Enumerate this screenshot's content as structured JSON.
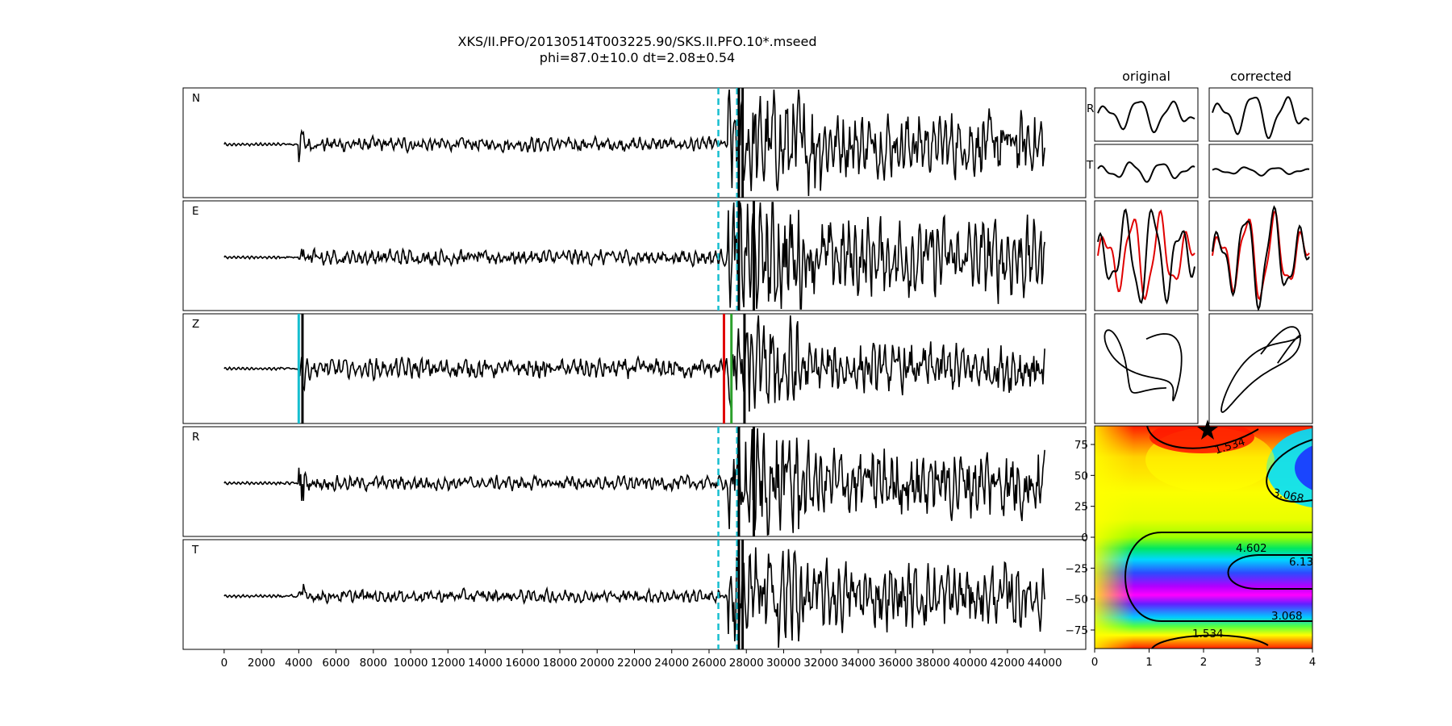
{
  "title": {
    "line1": "XKS/II.PFO/20130514T003225.90/SKS.II.PFO.10*.mseed",
    "line2": "phi=87.0±10.0 dt=2.08±0.54"
  },
  "chart_data": [
    {
      "type": "line",
      "description_of_axes": "shared x axis for trace panels",
      "x_ticks": [
        "0",
        "2000",
        "4000",
        "6000",
        "8000",
        "10000",
        "12000",
        "14000",
        "16000",
        "18000",
        "20000",
        "22000",
        "24000",
        "26000",
        "28000",
        "30000",
        "32000",
        "34000",
        "36000",
        "38000",
        "40000",
        "42000",
        "44000"
      ],
      "x_tick_values": [
        0,
        2000,
        4000,
        6000,
        8000,
        10000,
        12000,
        14000,
        16000,
        18000,
        20000,
        22000,
        24000,
        26000,
        28000,
        30000,
        32000,
        34000,
        36000,
        38000,
        40000,
        42000,
        44000
      ],
      "xlim": [
        -2200,
        46200
      ],
      "panels": [
        {
          "label": "N",
          "markers": [
            {
              "x": 26500,
              "color": "#17becf",
              "style": "dashed"
            },
            {
              "x": 27500,
              "color": "#17becf",
              "style": "dashed"
            },
            {
              "x": 27600,
              "color": "#000000",
              "style": "solid"
            },
            {
              "x": 27800,
              "color": "#000000",
              "style": "solid"
            }
          ]
        },
        {
          "label": "E",
          "markers": [
            {
              "x": 26500,
              "color": "#17becf",
              "style": "dashed"
            },
            {
              "x": 27500,
              "color": "#17becf",
              "style": "dashed"
            },
            {
              "x": 27600,
              "color": "#000000",
              "style": "solid"
            },
            {
              "x": 28400,
              "color": "#000000",
              "style": "solid"
            }
          ]
        },
        {
          "label": "Z",
          "markers": [
            {
              "x": 4000,
              "color": "#17becf",
              "style": "solid"
            },
            {
              "x": 4200,
              "color": "#000000",
              "style": "solid"
            },
            {
              "x": 26800,
              "color": "#e00000",
              "style": "solid"
            },
            {
              "x": 27200,
              "color": "#2ca02c",
              "style": "solid"
            },
            {
              "x": 27900,
              "color": "#000000",
              "style": "solid"
            }
          ]
        },
        {
          "label": "R",
          "markers": [
            {
              "x": 26500,
              "color": "#17becf",
              "style": "dashed"
            },
            {
              "x": 27500,
              "color": "#17becf",
              "style": "dashed"
            },
            {
              "x": 27600,
              "color": "#000000",
              "style": "solid"
            },
            {
              "x": 28400,
              "color": "#000000",
              "style": "solid"
            }
          ]
        },
        {
          "label": "T",
          "markers": [
            {
              "x": 26500,
              "color": "#17becf",
              "style": "dashed"
            },
            {
              "x": 27500,
              "color": "#17becf",
              "style": "dashed"
            },
            {
              "x": 27600,
              "color": "#000000",
              "style": "solid"
            },
            {
              "x": 27800,
              "color": "#000000",
              "style": "solid"
            }
          ]
        }
      ]
    },
    {
      "type": "line",
      "column_titles": [
        "original",
        "corrected"
      ],
      "row_labels": [
        "R",
        "T"
      ]
    },
    {
      "type": "heatmap",
      "x_ticks": [
        "0",
        "1",
        "2",
        "3",
        "4"
      ],
      "x_tick_values": [
        0,
        1,
        2,
        3,
        4
      ],
      "y_ticks": [
        "75",
        "50",
        "25",
        "0",
        "−25",
        "−50",
        "−75"
      ],
      "y_tick_values": [
        75,
        50,
        25,
        0,
        -25,
        -50,
        -75
      ],
      "xlim": [
        0,
        4
      ],
      "ylim": [
        -90,
        90
      ],
      "contour_labels": [
        "1.534",
        "3.068",
        "4.602",
        "6.13",
        "3.068",
        "1.534"
      ],
      "best_fit": {
        "dt": 2.08,
        "phi": 87.0,
        "marker": "star"
      }
    }
  ]
}
